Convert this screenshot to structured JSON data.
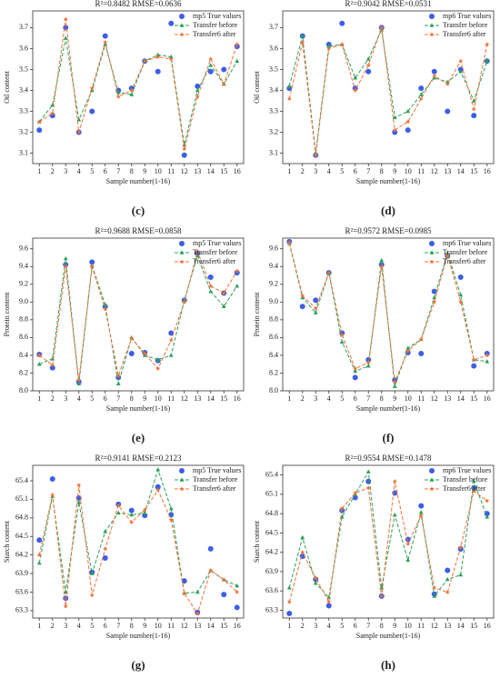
{
  "chart_data": [
    {
      "type": "line",
      "title": "R²=0.8482   RMSE=0.0636",
      "caption": "(c)",
      "xlabel": "Sample number(1-16)",
      "ylabel": "Oil content",
      "x": [
        1,
        2,
        3,
        4,
        5,
        6,
        7,
        8,
        9,
        10,
        11,
        12,
        13,
        14,
        15,
        16
      ],
      "xlim": [
        0.5,
        16.5
      ],
      "xticks": [
        1,
        2,
        3,
        4,
        5,
        6,
        7,
        8,
        9,
        10,
        11,
        12,
        13,
        14,
        15,
        16
      ],
      "ylim": [
        3.05,
        3.78
      ],
      "yticks": [
        3.1,
        3.2,
        3.3,
        3.4,
        3.5,
        3.6,
        3.7
      ],
      "legend": "upper right",
      "series": [
        {
          "name": "mp5 True values",
          "color": "#3d5ee6",
          "marker": "circle",
          "line": false,
          "values": [
            3.21,
            3.28,
            3.7,
            3.2,
            3.3,
            3.66,
            3.4,
            3.41,
            3.54,
            3.49,
            3.72,
            3.09,
            3.42,
            3.49,
            3.5,
            3.61
          ]
        },
        {
          "name": "Transfer before",
          "color": "#2ca05a",
          "marker": "triangle",
          "line": true,
          "values": [
            3.25,
            3.33,
            3.65,
            3.26,
            3.4,
            3.62,
            3.39,
            3.38,
            3.54,
            3.57,
            3.56,
            3.14,
            3.4,
            3.52,
            3.43,
            3.54
          ]
        },
        {
          "name": "Transfer6 after",
          "color": "#f0703a",
          "marker": "star",
          "line": true,
          "values": [
            3.25,
            3.29,
            3.74,
            3.2,
            3.41,
            3.63,
            3.37,
            3.4,
            3.54,
            3.56,
            3.55,
            3.12,
            3.37,
            3.55,
            3.43,
            3.62
          ]
        }
      ]
    },
    {
      "type": "line",
      "title": "R²=0.9042   RMSE=0.0531",
      "caption": "(d)",
      "xlabel": "Sample number(1-16)",
      "ylabel": "Oil content",
      "x": [
        1,
        2,
        3,
        4,
        5,
        6,
        7,
        8,
        9,
        10,
        11,
        12,
        13,
        14,
        15,
        16
      ],
      "xlim": [
        0.5,
        16.5
      ],
      "xticks": [
        1,
        2,
        3,
        4,
        5,
        6,
        7,
        8,
        9,
        10,
        11,
        12,
        13,
        14,
        15,
        16
      ],
      "ylim": [
        3.05,
        3.78
      ],
      "yticks": [
        3.1,
        3.2,
        3.3,
        3.4,
        3.5,
        3.6,
        3.7
      ],
      "legend": "upper right",
      "series": [
        {
          "name": "mp6 True values",
          "color": "#3d5ee6",
          "marker": "circle",
          "line": false,
          "values": [
            3.41,
            3.66,
            3.09,
            3.62,
            3.72,
            3.41,
            3.49,
            3.7,
            3.2,
            3.21,
            3.41,
            3.49,
            3.3,
            3.5,
            3.28,
            3.54
          ]
        },
        {
          "name": "Transfer before",
          "color": "#2ca05a",
          "marker": "triangle",
          "line": true,
          "values": [
            3.42,
            3.66,
            3.1,
            3.61,
            3.62,
            3.46,
            3.55,
            3.69,
            3.27,
            3.3,
            3.38,
            3.46,
            3.44,
            3.49,
            3.35,
            3.54
          ]
        },
        {
          "name": "Transfer6 after",
          "color": "#f0703a",
          "marker": "star",
          "line": true,
          "values": [
            3.36,
            3.63,
            3.09,
            3.6,
            3.62,
            3.4,
            3.52,
            3.7,
            3.21,
            3.25,
            3.36,
            3.47,
            3.43,
            3.54,
            3.31,
            3.62
          ]
        }
      ]
    },
    {
      "type": "line",
      "title": "R²=0.9688   RMSE=0.0858",
      "caption": "(e)",
      "xlabel": "Sample number(1-16)",
      "ylabel": "Protein content",
      "x": [
        1,
        2,
        3,
        4,
        5,
        6,
        7,
        8,
        9,
        10,
        11,
        12,
        13,
        14,
        15,
        16
      ],
      "xlim": [
        0.5,
        16.5
      ],
      "xticks": [
        1,
        2,
        3,
        4,
        5,
        6,
        7,
        8,
        9,
        10,
        11,
        12,
        13,
        14,
        15,
        16
      ],
      "ylim": [
        8.0,
        9.72
      ],
      "yticks": [
        {
          "value": 8,
          "label": "8.0"
        },
        8.2,
        8.4,
        8.6,
        8.8,
        {
          "value": 9,
          "label": "9.0"
        },
        9.2,
        9.4,
        9.6
      ],
      "legend": "upper right",
      "series": [
        {
          "name": "mp5 True values",
          "color": "#3d5ee6",
          "marker": "circle",
          "line": false,
          "values": [
            8.41,
            8.26,
            9.42,
            8.1,
            9.45,
            8.95,
            8.15,
            8.42,
            8.43,
            8.34,
            8.65,
            9.02,
            9.55,
            9.28,
            9.1,
            9.33
          ]
        },
        {
          "name": "Transfer before",
          "color": "#2ca05a",
          "marker": "triangle",
          "line": true,
          "values": [
            8.3,
            8.36,
            9.49,
            8.08,
            9.41,
            8.97,
            8.08,
            8.6,
            8.4,
            8.35,
            8.4,
            9.02,
            9.52,
            9.12,
            8.95,
            9.18
          ]
        },
        {
          "name": "Transfer6 after",
          "color": "#f0703a",
          "marker": "star",
          "line": true,
          "values": [
            8.4,
            8.29,
            9.4,
            8.12,
            9.4,
            8.92,
            8.17,
            8.59,
            8.42,
            8.25,
            8.57,
            9.0,
            9.57,
            9.18,
            9.1,
            9.35
          ]
        }
      ]
    },
    {
      "type": "line",
      "title": "R²=0.9572   RMSE=0.0985",
      "caption": "(f)",
      "xlabel": "Sample number(1-16)",
      "ylabel": "Protein content",
      "x": [
        1,
        2,
        3,
        4,
        5,
        6,
        7,
        8,
        9,
        10,
        11,
        12,
        13,
        14,
        15,
        16
      ],
      "xlim": [
        0.5,
        16.5
      ],
      "xticks": [
        1,
        2,
        3,
        4,
        5,
        6,
        7,
        8,
        9,
        10,
        11,
        12,
        13,
        14,
        15,
        16
      ],
      "ylim": [
        8.0,
        9.72
      ],
      "yticks": [
        {
          "value": 8,
          "label": "8.0"
        },
        8.2,
        8.4,
        8.6,
        8.8,
        {
          "value": 9,
          "label": "9.0"
        },
        9.2,
        9.4,
        9.6
      ],
      "legend": "upper right",
      "series": [
        {
          "name": "mp6 True values",
          "color": "#3d5ee6",
          "marker": "circle",
          "line": false,
          "values": [
            9.68,
            8.95,
            9.02,
            9.33,
            8.65,
            8.15,
            8.35,
            9.42,
            8.12,
            8.43,
            8.42,
            9.12,
            9.52,
            9.28,
            8.28,
            8.42
          ]
        },
        {
          "name": "Transfer before",
          "color": "#2ca05a",
          "marker": "triangle",
          "line": true,
          "values": [
            9.66,
            9.05,
            8.88,
            9.33,
            8.55,
            8.22,
            8.28,
            9.47,
            8.05,
            8.48,
            8.58,
            9.05,
            9.55,
            9.08,
            8.35,
            8.33
          ]
        },
        {
          "name": "Transfer6 after",
          "color": "#f0703a",
          "marker": "star",
          "line": true,
          "values": [
            9.67,
            9.07,
            8.93,
            9.33,
            8.63,
            8.25,
            8.32,
            9.4,
            8.1,
            8.45,
            8.58,
            9.0,
            9.53,
            9.0,
            8.35,
            8.4
          ]
        }
      ]
    },
    {
      "type": "line",
      "title": "R²=0.9141   RMSE=0.2123",
      "caption": "(g)",
      "xlabel": "Sample number(1-16)",
      "ylabel": "Starch content",
      "x": [
        1,
        2,
        3,
        4,
        5,
        6,
        7,
        8,
        9,
        10,
        11,
        12,
        13,
        14,
        15,
        16
      ],
      "xlim": [
        0.5,
        16.5
      ],
      "xticks": [
        1,
        2,
        3,
        4,
        5,
        6,
        7,
        8,
        9,
        10,
        11,
        12,
        13,
        14,
        15,
        16
      ],
      "ylim": [
        63.18,
        65.65
      ],
      "yticks": [
        63.3,
        63.6,
        63.9,
        64.2,
        64.5,
        64.8,
        65.1,
        65.4
      ],
      "legend": "upper right",
      "series": [
        {
          "name": "mp5 True values",
          "color": "#3d5ee6",
          "marker": "circle",
          "line": false,
          "values": [
            64.44,
            65.43,
            63.5,
            65.12,
            63.92,
            64.15,
            65.02,
            64.92,
            64.84,
            65.3,
            64.85,
            63.78,
            63.27,
            64.3,
            63.56,
            63.35
          ]
        },
        {
          "name": "Transfer before",
          "color": "#2ca05a",
          "marker": "triangle",
          "line": true,
          "values": [
            64.07,
            65.15,
            63.6,
            65.05,
            63.9,
            64.58,
            64.88,
            64.85,
            64.88,
            65.58,
            64.95,
            63.58,
            63.6,
            63.95,
            63.8,
            63.7
          ]
        },
        {
          "name": "Transfer6 after",
          "color": "#f0703a",
          "marker": "star",
          "line": true,
          "values": [
            64.2,
            65.17,
            63.37,
            65.33,
            63.55,
            64.3,
            65.0,
            64.73,
            64.93,
            65.25,
            64.77,
            63.58,
            63.25,
            63.95,
            63.8,
            63.6
          ]
        }
      ]
    },
    {
      "type": "line",
      "title": "R²=0.9554   RMSE=0.1478",
      "caption": "(h)",
      "xlabel": "Sample number(1-16)",
      "ylabel": "Starch content",
      "x": [
        1,
        2,
        3,
        4,
        5,
        6,
        7,
        8,
        9,
        10,
        11,
        12,
        13,
        14,
        15,
        16
      ],
      "xlim": [
        0.5,
        16.5
      ],
      "xticks": [
        1,
        2,
        3,
        4,
        5,
        6,
        7,
        8,
        9,
        10,
        11,
        12,
        13,
        14,
        15,
        16
      ],
      "ylim": [
        63.18,
        65.55
      ],
      "yticks": [
        63.3,
        63.6,
        63.9,
        64.2,
        64.5,
        64.8,
        65.1,
        65.4
      ],
      "legend": "upper right",
      "series": [
        {
          "name": "mp6 True values",
          "color": "#3d5ee6",
          "marker": "circle",
          "line": false,
          "values": [
            63.25,
            64.14,
            63.78,
            63.37,
            64.85,
            65.05,
            65.3,
            63.52,
            65.12,
            64.4,
            64.92,
            63.55,
            63.92,
            64.25,
            65.2,
            64.8
          ]
        },
        {
          "name": "Transfer before",
          "color": "#2ca05a",
          "marker": "triangle",
          "line": true,
          "values": [
            63.65,
            64.43,
            63.72,
            63.5,
            64.75,
            65.1,
            65.45,
            63.65,
            64.78,
            64.08,
            64.82,
            63.52,
            63.78,
            63.85,
            65.3,
            64.75
          ]
        },
        {
          "name": "Transfer6 after",
          "color": "#f0703a",
          "marker": "star",
          "line": true,
          "values": [
            63.43,
            64.2,
            63.8,
            63.43,
            64.88,
            65.12,
            65.2,
            63.52,
            65.3,
            64.33,
            64.77,
            63.65,
            63.58,
            64.28,
            65.15,
            65.0
          ]
        }
      ]
    }
  ]
}
